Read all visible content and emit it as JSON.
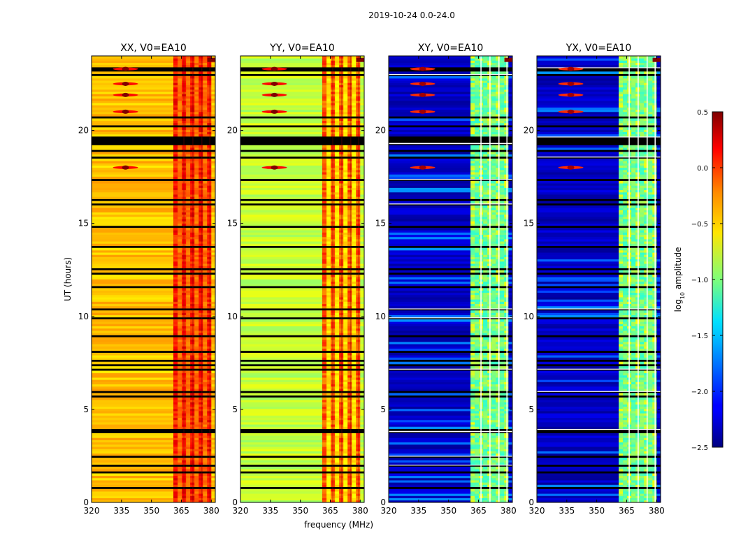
{
  "figure": {
    "suptitle": "2019-10-24 0.0-24.0"
  },
  "chart_data": [
    {
      "type": "heatmap",
      "title": "XX, V0=EA10",
      "xlabel": "",
      "ylabel": "UT (hours)",
      "xlim": [
        320,
        382
      ],
      "ylim": [
        0,
        24
      ],
      "xticks": [
        "320",
        "335",
        "350",
        "365",
        "380"
      ],
      "yticks": [
        "0",
        "5",
        "10",
        "15",
        "20"
      ],
      "base_level": -0.45,
      "rfi_level": 0.0,
      "rfi_band_mhz": [
        361,
        380
      ]
    },
    {
      "type": "heatmap",
      "title": "YY, V0=EA10",
      "xlabel": "frequency (MHz)",
      "ylabel": "",
      "xlim": [
        320,
        382
      ],
      "ylim": [
        0,
        24
      ],
      "xticks": [
        "320",
        "335",
        "350",
        "365",
        "380"
      ],
      "yticks": [
        "0",
        "5",
        "10",
        "15",
        "20"
      ],
      "base_level": -0.8,
      "rfi_level": -0.2,
      "rfi_band_mhz": [
        361,
        380
      ]
    },
    {
      "type": "heatmap",
      "title": "XY, V0=EA10",
      "xlabel": "",
      "ylabel": "",
      "xlim": [
        320,
        382
      ],
      "ylim": [
        0,
        24
      ],
      "xticks": [
        "320",
        "335",
        "350",
        "365",
        "380"
      ],
      "yticks": [
        "0",
        "5",
        "10",
        "15",
        "20"
      ],
      "base_level": -2.3,
      "rfi_level": -1.0,
      "rfi_band_mhz": [
        361,
        380
      ]
    },
    {
      "type": "heatmap",
      "title": "YX, V0=EA10",
      "xlabel": "",
      "ylabel": "",
      "xlim": [
        320,
        382
      ],
      "ylim": [
        0,
        24
      ],
      "xticks": [
        "320",
        "335",
        "350",
        "365",
        "380"
      ],
      "yticks": [
        "0",
        "5",
        "10",
        "15",
        "20"
      ],
      "base_level": -2.3,
      "rfi_level": -1.0,
      "rfi_band_mhz": [
        361,
        380
      ]
    }
  ],
  "colorbar": {
    "label": "log10 amplitude",
    "label_main": "log",
    "label_sub": "10",
    "label_rest": " amplitude",
    "range": [
      -2.5,
      0.5
    ],
    "ticks": [
      "0.5",
      "0.0",
      "−0.5",
      "−1.0",
      "−1.5",
      "−2.0",
      "−2.5"
    ],
    "tick_values": [
      0.5,
      0.0,
      -0.5,
      -1.0,
      -1.5,
      -2.0,
      -2.5
    ],
    "colormap": "jet"
  },
  "colors": {
    "background": "#ffffff",
    "axis": "#000000"
  }
}
